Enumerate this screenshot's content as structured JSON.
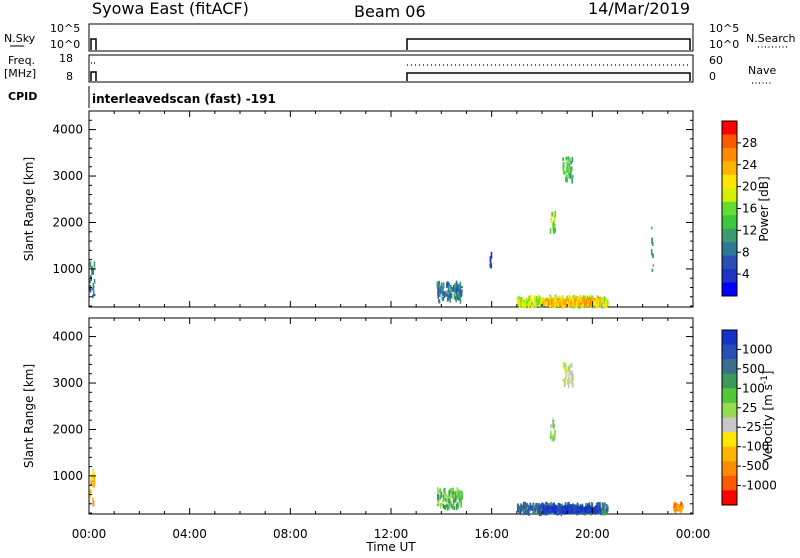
{
  "header": {
    "station": "Syowa East (fitACF)",
    "beam": "Beam 06",
    "date": "14/Mar/2019"
  },
  "strip": {
    "nsky_label": "N.Sky",
    "nsky_ticks": [
      "10^5",
      "10^0"
    ],
    "nsearch_ticks": [
      "10^5",
      "10^0"
    ],
    "nsearch_label": "N.Search",
    "freq_label_1": "Freq.",
    "freq_label_2": "[MHz]",
    "freq_ticks": [
      "18",
      "8"
    ],
    "nave_ticks": [
      "60",
      "0"
    ],
    "nave_label": "Nave",
    "cpid_label": "CPID",
    "cpid_text": "interleavedscan (fast) -191"
  },
  "chart_data": [
    {
      "type": "heatmap",
      "ylabel": "Slant Range [km]",
      "xlabel": "Time UT",
      "x_ticks": [
        "00:00",
        "04:00",
        "08:00",
        "12:00",
        "16:00",
        "20:00",
        "00:00"
      ],
      "y_ticks": [
        1000,
        2000,
        3000,
        4000
      ],
      "ylim": [
        180,
        4400
      ],
      "xlim_hours": [
        0,
        24
      ],
      "colorbar": {
        "label": "Power [dB]",
        "ticks": [
          "28",
          "24",
          "20",
          "16",
          "12",
          "8",
          "4"
        ],
        "colors": [
          "#ff0000",
          "#ff5a00",
          "#ff8c00",
          "#ffb400",
          "#ffe600",
          "#d2f000",
          "#64dc32",
          "#3cc83c",
          "#3c9b6e",
          "#2d7896",
          "#2850b4",
          "#1e32c8",
          "#0000ff"
        ]
      },
      "blobs": [
        {
          "t0": 17.0,
          "t1": 20.6,
          "r0": 200,
          "r1": 380,
          "c": 5
        },
        {
          "t0": 18.0,
          "t1": 20.3,
          "r0": 230,
          "r1": 340,
          "c": 3
        },
        {
          "t0": 13.8,
          "t1": 14.8,
          "r0": 300,
          "r1": 700,
          "c": 9
        },
        {
          "t0": 18.8,
          "t1": 19.2,
          "r0": 2900,
          "r1": 3400,
          "c": 7
        },
        {
          "t0": 18.3,
          "t1": 18.5,
          "r0": 1800,
          "r1": 2200,
          "c": 6
        },
        {
          "t0": 15.9,
          "t1": 16.0,
          "r0": 1050,
          "r1": 1300,
          "c": 10
        },
        {
          "t0": 22.3,
          "t1": 22.4,
          "r0": 850,
          "r1": 1950,
          "c": 8
        },
        {
          "t0": 0.0,
          "t1": 0.2,
          "r0": 400,
          "r1": 1100,
          "c": 9
        }
      ]
    },
    {
      "type": "heatmap",
      "ylabel": "Slant Range [km]",
      "xlabel": "Time UT",
      "x_ticks": [
        "00:00",
        "04:00",
        "08:00",
        "12:00",
        "16:00",
        "20:00",
        "00:00"
      ],
      "y_ticks": [
        1000,
        2000,
        3000,
        4000
      ],
      "ylim": [
        180,
        4400
      ],
      "xlim_hours": [
        0,
        24
      ],
      "colorbar": {
        "label": "Velocity [m s^-1]",
        "ticks": [
          "1000",
          "500",
          "100",
          "25",
          "-25",
          "-100",
          "-500",
          "-1000"
        ],
        "colors": [
          "#1432c8",
          "#2850b4",
          "#3c6e8c",
          "#3c9b5a",
          "#50c83c",
          "#96dc50",
          "#c8c8c8",
          "#ffe600",
          "#ffb400",
          "#ff8c00",
          "#ff5a00",
          "#ff0000"
        ]
      },
      "blobs": [
        {
          "t0": 17.0,
          "t1": 20.6,
          "r0": 200,
          "r1": 380,
          "c": 2
        },
        {
          "t0": 18.0,
          "t1": 20.3,
          "r0": 230,
          "r1": 320,
          "c": 0
        },
        {
          "t0": 13.8,
          "t1": 14.8,
          "r0": 300,
          "r1": 700,
          "c": 4
        },
        {
          "t0": 18.8,
          "t1": 19.2,
          "r0": 2900,
          "r1": 3400,
          "c": 6
        },
        {
          "t0": 18.3,
          "t1": 18.5,
          "r0": 1800,
          "r1": 2200,
          "c": 5
        },
        {
          "t0": 23.2,
          "t1": 23.6,
          "r0": 250,
          "r1": 400,
          "c": 9
        },
        {
          "t0": 0.0,
          "t1": 0.2,
          "r0": 400,
          "r1": 1100,
          "c": 8
        }
      ]
    }
  ]
}
